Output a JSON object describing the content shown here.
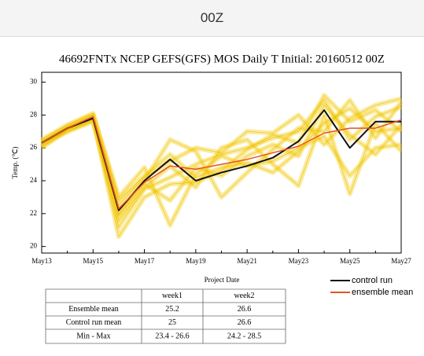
{
  "tab": {
    "label": "00Z"
  },
  "chart_data": {
    "type": "line",
    "title": "46692FNTx NCEP GEFS(GFS) MOS Daily T  Initial: 20160512 00Z",
    "y_label": "Temp. (℃)",
    "x_label": "Project  Date",
    "categories": [
      "May13",
      null,
      "May15",
      null,
      "May17",
      null,
      "May19",
      null,
      "May21",
      null,
      "May23",
      null,
      "May25",
      null,
      "May27"
    ],
    "ylim": [
      19.6,
      30.6
    ],
    "yticks": [
      20,
      22,
      24,
      26,
      28,
      30
    ],
    "legend": "bottom-right",
    "members_color": "#f7d21e",
    "members": [
      {
        "values": [
          26.1,
          27.0,
          27.7,
          21.2,
          23.5,
          24.2,
          25.0,
          25.6,
          26.0,
          26.6,
          27.0,
          28.9,
          26.5,
          27.9,
          28.5
        ]
      },
      {
        "values": [
          26.4,
          27.3,
          28.0,
          22.8,
          24.3,
          25.6,
          24.2,
          24.8,
          25.1,
          24.5,
          25.8,
          27.5,
          28.4,
          27.0,
          27.2
        ]
      },
      {
        "values": [
          26.0,
          27.1,
          27.8,
          20.6,
          23.0,
          23.8,
          23.9,
          24.6,
          25.9,
          26.8,
          26.3,
          29.2,
          27.6,
          28.3,
          27.0
        ]
      },
      {
        "values": [
          26.5,
          27.4,
          28.1,
          23.0,
          24.8,
          21.3,
          24.4,
          25.5,
          24.9,
          25.2,
          26.0,
          26.7,
          24.3,
          26.0,
          26.2
        ]
      },
      {
        "values": [
          26.2,
          27.2,
          27.9,
          22.0,
          24.0,
          26.5,
          25.8,
          23.0,
          24.5,
          25.9,
          27.2,
          27.0,
          28.9,
          26.6,
          28.8
        ]
      },
      {
        "values": [
          26.3,
          27.0,
          27.6,
          21.6,
          23.6,
          24.9,
          23.6,
          26.0,
          26.5,
          25.0,
          23.7,
          28.0,
          23.2,
          27.5,
          25.8
        ]
      },
      {
        "values": [
          26.4,
          27.3,
          28.0,
          22.5,
          24.2,
          25.2,
          26.0,
          25.7,
          27.0,
          26.9,
          28.0,
          26.2,
          27.8,
          28.6,
          29.0
        ]
      },
      {
        "values": [
          26.2,
          27.1,
          27.7,
          21.9,
          23.8,
          22.8,
          24.8,
          24.3,
          25.5,
          26.2,
          25.5,
          28.6,
          26.8,
          25.6,
          27.4
        ]
      }
    ],
    "series": [
      {
        "name": "control run",
        "color": "#111111",
        "values": [
          26.3,
          27.2,
          27.8,
          22.2,
          24.0,
          25.3,
          24.0,
          24.5,
          24.9,
          25.4,
          26.4,
          28.3,
          26.0,
          27.6,
          27.6
        ]
      },
      {
        "name": "ensemble mean",
        "color": "#e8502a",
        "values": [
          26.3,
          27.2,
          27.9,
          22.3,
          23.9,
          24.9,
          24.7,
          25.0,
          25.3,
          25.7,
          26.1,
          26.9,
          27.2,
          27.2,
          27.7
        ]
      }
    ]
  },
  "table": {
    "header": [
      "week1",
      "week2"
    ],
    "rows": [
      {
        "label": "Ensemble mean",
        "cells": [
          25.2,
          26.6
        ]
      },
      {
        "label": "Control run mean",
        "cells": [
          25.0,
          26.6
        ]
      },
      {
        "label": "Min - Max",
        "cells": [
          "23.4 - 26.6",
          "24.2 - 28.5"
        ]
      }
    ]
  }
}
